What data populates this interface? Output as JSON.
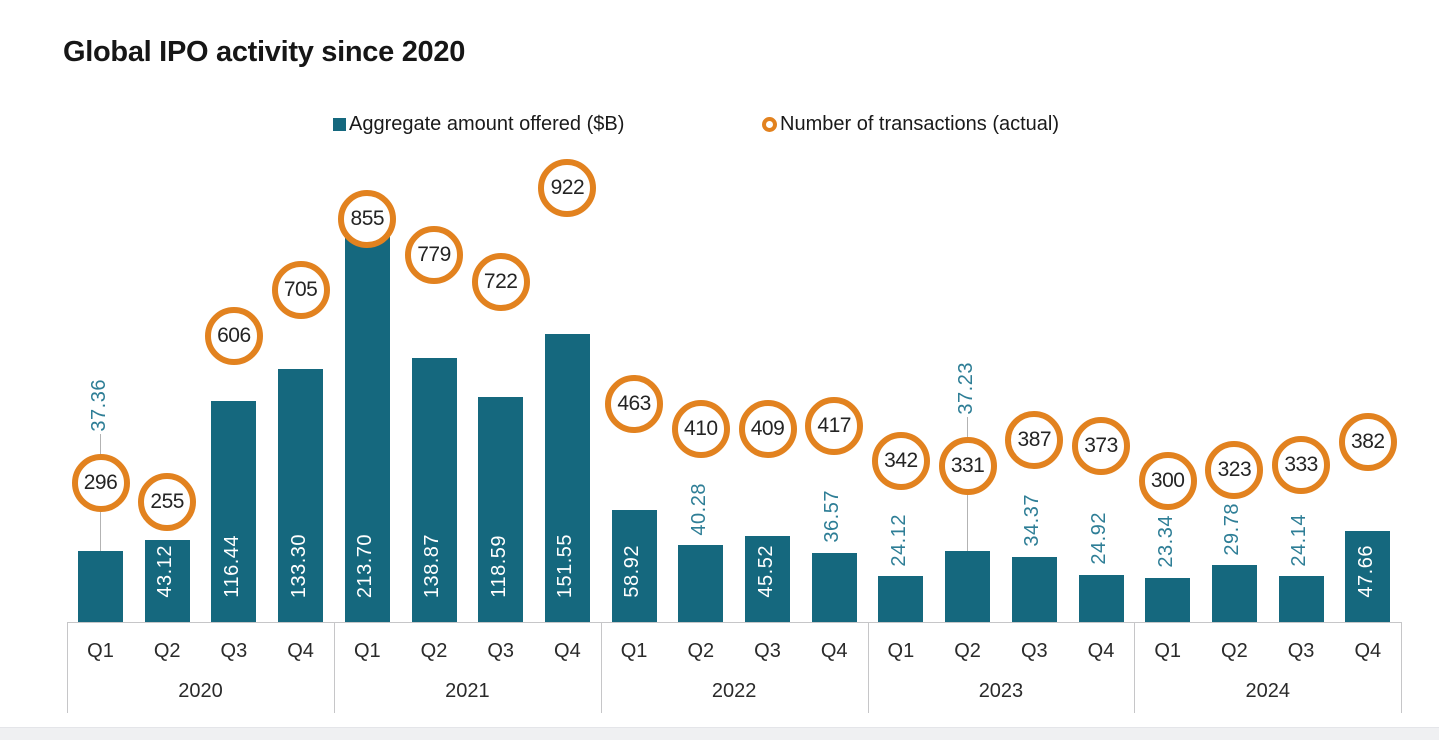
{
  "title": "Global IPO activity since 2020",
  "legend": {
    "bars_label": "Aggregate amount offered ($B)",
    "circles_label": "Number of transactions (actual)"
  },
  "colors": {
    "bar": "#15687E",
    "bar_label_inside": "#FFFFFF",
    "bar_label_outside": "#2E7E96",
    "ring_orange": "#E2821F",
    "circle_text": "#242424",
    "axis_line": "#C6C6C8",
    "leader_line": "#B3B3B3",
    "title_text": "#161616",
    "footer_strip": "#EFF0F2"
  },
  "chart_data": {
    "type": "bar",
    "title": "Global IPO activity since 2020",
    "legend_position": "top",
    "grid": false,
    "xlabel": "",
    "ylabel": "",
    "bar_axis": {
      "label": "Aggregate amount offered ($B)",
      "min": 0,
      "implied_max": 220
    },
    "circle_axis": {
      "label": "Number of transactions (actual)",
      "min": 0,
      "implied_max": 950
    },
    "categories": [
      "Q1 2020",
      "Q2 2020",
      "Q3 2020",
      "Q4 2020",
      "Q1 2021",
      "Q2 2021",
      "Q3 2021",
      "Q4 2021",
      "Q1 2022",
      "Q2 2022",
      "Q3 2022",
      "Q4 2022",
      "Q1 2023",
      "Q2 2023",
      "Q3 2023",
      "Q4 2023",
      "Q1 2024",
      "Q2 2024",
      "Q3 2024",
      "Q4 2024"
    ],
    "series": [
      {
        "name": "Aggregate amount offered ($B)",
        "type": "bar",
        "values": [
          37.36,
          43.12,
          116.44,
          133.3,
          213.7,
          138.87,
          118.59,
          151.55,
          58.92,
          40.28,
          45.52,
          36.57,
          24.12,
          37.23,
          34.37,
          24.92,
          23.34,
          29.78,
          24.14,
          47.66
        ]
      },
      {
        "name": "Number of transactions (actual)",
        "type": "scatter",
        "values": [
          296,
          255,
          606,
          705,
          855,
          779,
          722,
          922,
          463,
          410,
          409,
          417,
          342,
          331,
          387,
          373,
          300,
          323,
          333,
          382
        ]
      }
    ],
    "years": [
      {
        "year": "2020",
        "quarters": [
          {
            "label": "Q1",
            "amount": 37.36,
            "amount_display": "37.36",
            "transactions": 296,
            "value_label_mode": "above-line"
          },
          {
            "label": "Q2",
            "amount": 43.12,
            "amount_display": "43.12",
            "transactions": 255,
            "value_label_mode": "inside"
          },
          {
            "label": "Q3",
            "amount": 116.44,
            "amount_display": "116.44",
            "transactions": 606,
            "value_label_mode": "inside"
          },
          {
            "label": "Q4",
            "amount": 133.3,
            "amount_display": "133.30",
            "transactions": 705,
            "value_label_mode": "inside"
          }
        ]
      },
      {
        "year": "2021",
        "quarters": [
          {
            "label": "Q1",
            "amount": 213.7,
            "amount_display": "213.70",
            "transactions": 855,
            "value_label_mode": "inside"
          },
          {
            "label": "Q2",
            "amount": 138.87,
            "amount_display": "138.87",
            "transactions": 779,
            "value_label_mode": "inside"
          },
          {
            "label": "Q3",
            "amount": 118.59,
            "amount_display": "118.59",
            "transactions": 722,
            "value_label_mode": "inside"
          },
          {
            "label": "Q4",
            "amount": 151.55,
            "amount_display": "151.55",
            "transactions": 922,
            "value_label_mode": "inside"
          }
        ]
      },
      {
        "year": "2022",
        "quarters": [
          {
            "label": "Q1",
            "amount": 58.92,
            "amount_display": "58.92",
            "transactions": 463,
            "value_label_mode": "inside"
          },
          {
            "label": "Q2",
            "amount": 40.28,
            "amount_display": "40.28",
            "transactions": 410,
            "value_label_mode": "above"
          },
          {
            "label": "Q3",
            "amount": 45.52,
            "amount_display": "45.52",
            "transactions": 409,
            "value_label_mode": "inside"
          },
          {
            "label": "Q4",
            "amount": 36.57,
            "amount_display": "36.57",
            "transactions": 417,
            "value_label_mode": "above"
          }
        ]
      },
      {
        "year": "2023",
        "quarters": [
          {
            "label": "Q1",
            "amount": 24.12,
            "amount_display": "24.12",
            "transactions": 342,
            "value_label_mode": "above"
          },
          {
            "label": "Q2",
            "amount": 37.23,
            "amount_display": "37.23",
            "transactions": 331,
            "value_label_mode": "above-line"
          },
          {
            "label": "Q3",
            "amount": 34.37,
            "amount_display": "34.37",
            "transactions": 387,
            "value_label_mode": "above"
          },
          {
            "label": "Q4",
            "amount": 24.92,
            "amount_display": "24.92",
            "transactions": 373,
            "value_label_mode": "above"
          }
        ]
      },
      {
        "year": "2024",
        "quarters": [
          {
            "label": "Q1",
            "amount": 23.34,
            "amount_display": "23.34",
            "transactions": 300,
            "value_label_mode": "above"
          },
          {
            "label": "Q2",
            "amount": 29.78,
            "amount_display": "29.78",
            "transactions": 323,
            "value_label_mode": "above"
          },
          {
            "label": "Q3",
            "amount": 24.14,
            "amount_display": "24.14",
            "transactions": 333,
            "value_label_mode": "above"
          },
          {
            "label": "Q4",
            "amount": 47.66,
            "amount_display": "47.66",
            "transactions": 382,
            "value_label_mode": "inside"
          }
        ]
      }
    ]
  }
}
